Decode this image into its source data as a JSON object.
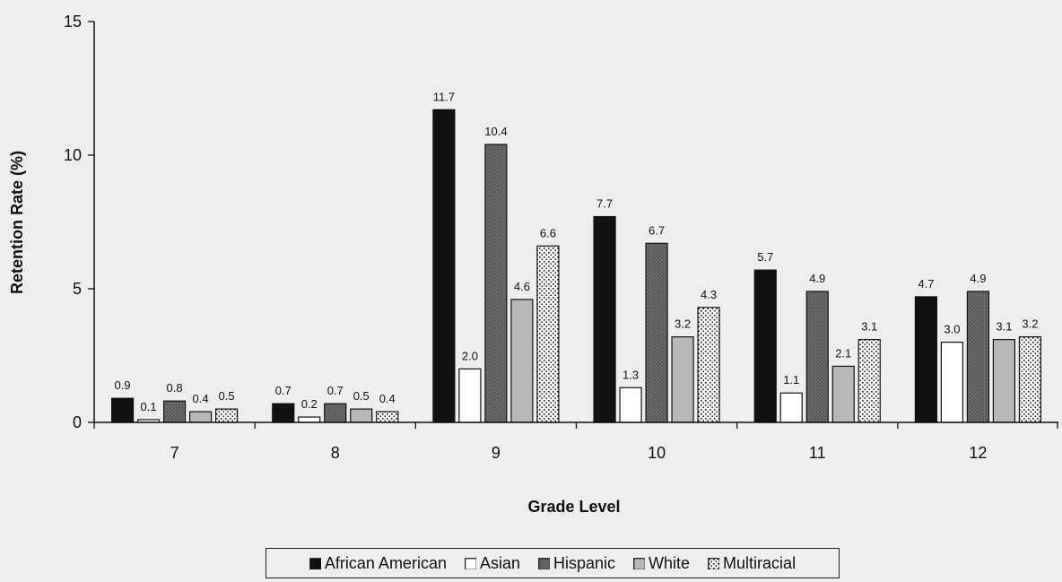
{
  "chart_data": {
    "type": "bar",
    "xlabel": "Grade Level",
    "ylabel": "Retention Rate (%)",
    "ylim": [
      0,
      15
    ],
    "yticks": [
      "0",
      "5",
      "10",
      "15"
    ],
    "categories": [
      "7",
      "8",
      "9",
      "10",
      "11",
      "12"
    ],
    "grid": false,
    "legend_position": "bottom",
    "series": [
      {
        "name": "African American",
        "values": [
          0.9,
          0.7,
          11.7,
          7.7,
          5.7,
          4.7
        ],
        "labels": [
          "0.9",
          "0.7",
          "11.7",
          "7.7",
          "5.7",
          "4.7"
        ],
        "color": "#111111",
        "pattern": "solid"
      },
      {
        "name": "Asian",
        "values": [
          0.1,
          0.2,
          2.0,
          1.3,
          1.1,
          3.0
        ],
        "labels": [
          "0.1",
          "0.2",
          "2.0",
          "1.3",
          "1.1",
          "3.0"
        ],
        "color": "#ffffff",
        "pattern": "solid"
      },
      {
        "name": "Hispanic",
        "values": [
          0.8,
          0.7,
          10.4,
          6.7,
          4.9,
          4.9
        ],
        "labels": [
          "0.8",
          "0.7",
          "10.4",
          "6.7",
          "4.9",
          "4.9"
        ],
        "color": "#666666",
        "pattern": "stipple"
      },
      {
        "name": "White",
        "values": [
          0.4,
          0.5,
          4.6,
          3.2,
          2.1,
          3.1
        ],
        "labels": [
          "0.4",
          "0.5",
          "4.6",
          "3.2",
          "2.1",
          "3.1"
        ],
        "color": "#b8b8b8",
        "pattern": "solid"
      },
      {
        "name": "Multiracial",
        "values": [
          0.5,
          0.4,
          6.6,
          4.3,
          3.1,
          3.2
        ],
        "labels": [
          "0.5",
          "0.4",
          "6.6",
          "4.3",
          "3.1",
          "3.2"
        ],
        "color": "#f4f4f4",
        "pattern": "dots"
      }
    ]
  }
}
